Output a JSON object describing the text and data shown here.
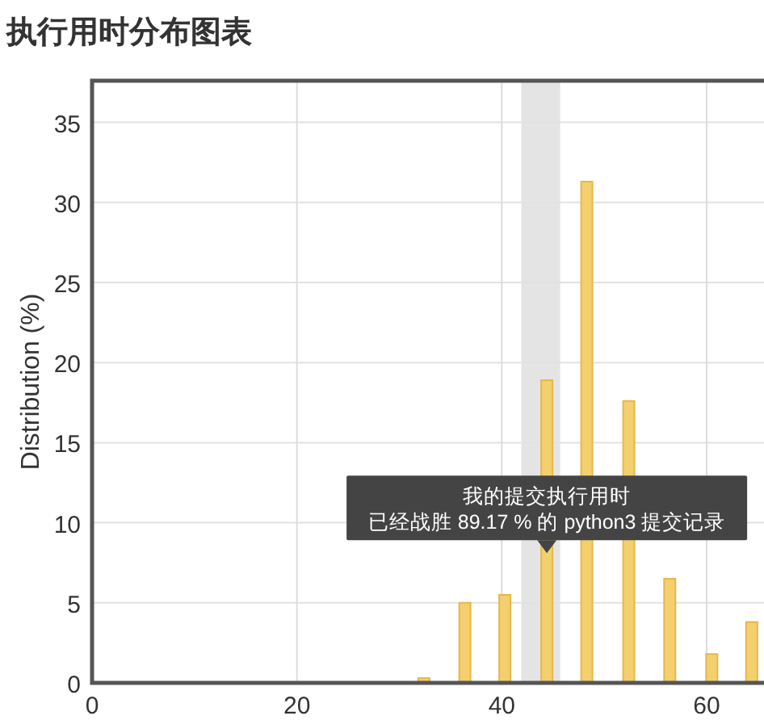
{
  "chart_data": {
    "type": "bar",
    "title": "执行用时分布图表",
    "ylabel": "Distribution (%)",
    "x": [
      32.4,
      36.4,
      40.3,
      44.4,
      48.3,
      52.4,
      56.4,
      60.5,
      64.4
    ],
    "values": [
      0.3,
      5.0,
      5.5,
      18.9,
      31.3,
      17.6,
      6.5,
      1.8,
      3.8
    ],
    "color": "#f3cf6e",
    "xlim": [
      0,
      65.6
    ],
    "xticks": [
      0,
      20,
      40,
      60
    ],
    "ylim": [
      0,
      37.6
    ],
    "yticks": [
      0,
      5,
      10,
      15,
      20,
      25,
      30,
      35
    ],
    "grid": true,
    "bands": [
      {
        "axis": "x",
        "from": 41.9,
        "to": 45.7,
        "color": "#e4e4e4"
      }
    ],
    "annotations": [
      {
        "text": "我的提交执行用时",
        "x": 44.4,
        "y": 8.1
      },
      "已经战胜 89.17 % 的 python3 提交记录"
    ]
  }
}
